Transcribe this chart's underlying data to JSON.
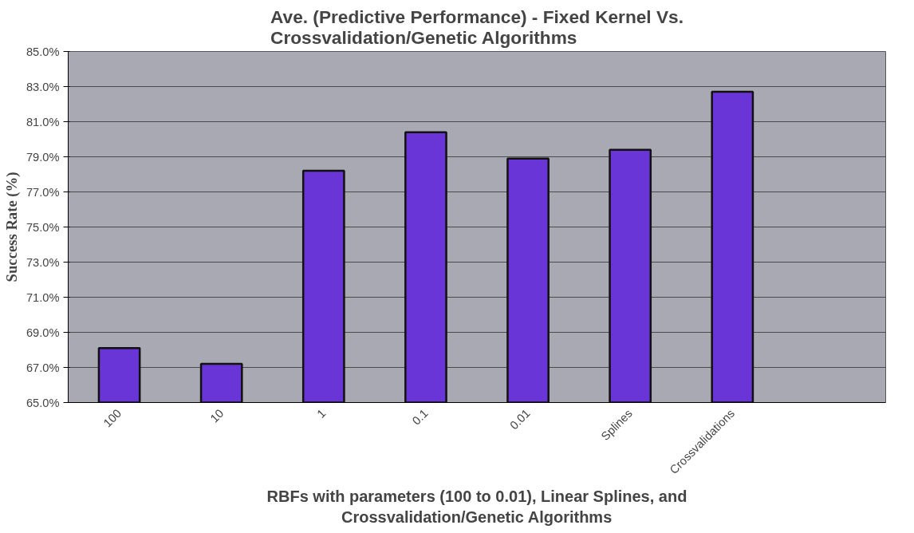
{
  "chart_data": {
    "type": "bar",
    "title": "Ave. (Predictive Performance) - Fixed Kernel Vs.\nCrossvalidation/Genetic Algorithms",
    "xlabel": "RBFs with parameters (100 to 0.01), Linear Splines, and\nCrossvalidation/Genetic Algorithms",
    "ylabel": "Success Rate (%)",
    "categories": [
      "100",
      "10",
      "1",
      "0.1",
      "0.01",
      "Splines",
      "Crossvalidations",
      null
    ],
    "values": [
      68.1,
      67.2,
      78.2,
      80.4,
      78.9,
      79.4,
      82.7,
      null
    ],
    "color": "#6a35d6",
    "ylim": [
      65,
      85
    ],
    "yticks": [
      {
        "value": 65,
        "label": "65.0%"
      },
      {
        "value": 67,
        "label": "67.0%"
      },
      {
        "value": 69,
        "label": "69.0%"
      },
      {
        "value": 71,
        "label": "71.0%"
      },
      {
        "value": 73,
        "label": "73.0%"
      },
      {
        "value": 75,
        "label": "75.0%"
      },
      {
        "value": 77,
        "label": "77.0%"
      },
      {
        "value": 79,
        "label": "79.0%"
      },
      {
        "value": 81,
        "label": "81.0%"
      },
      {
        "value": 83,
        "label": "83.0%"
      },
      {
        "value": 85,
        "label": "85.0%"
      }
    ],
    "grid": "y"
  }
}
